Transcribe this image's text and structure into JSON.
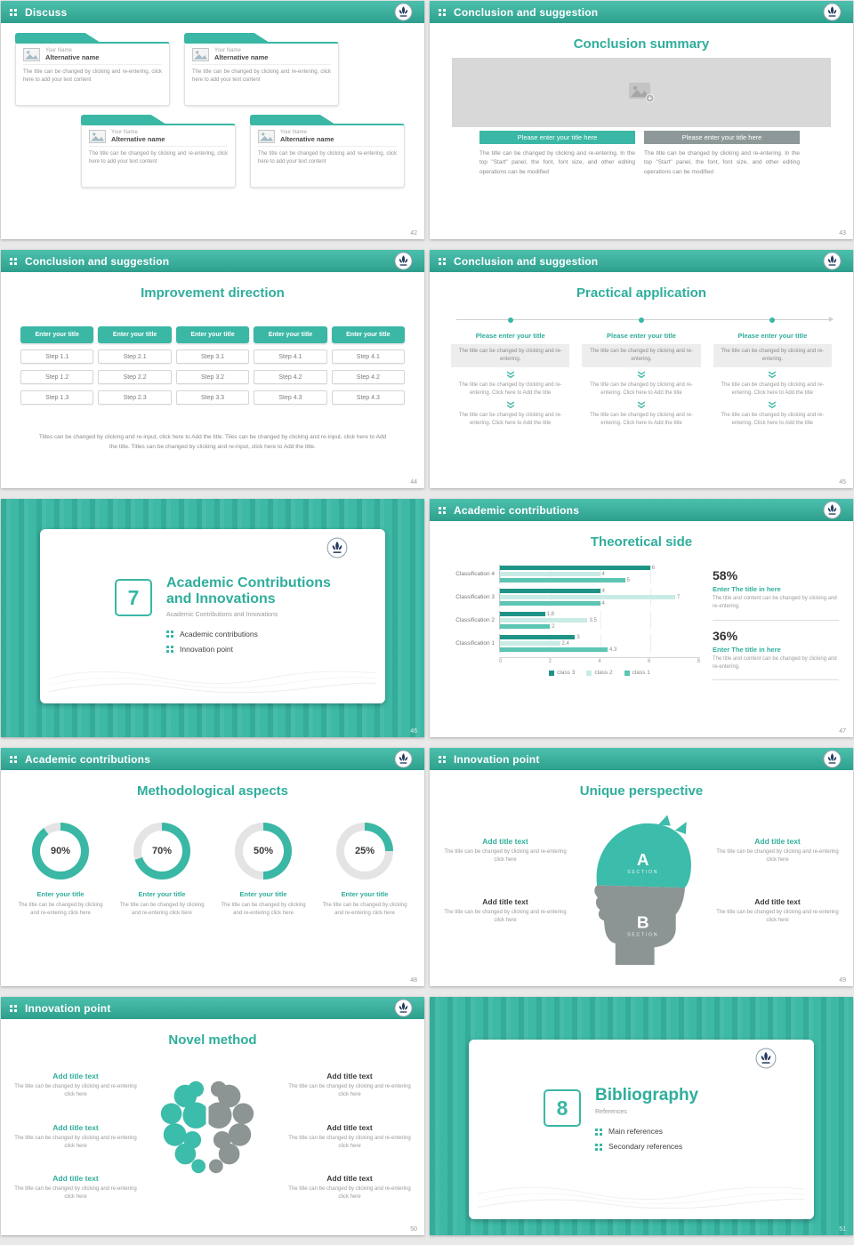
{
  "theme": {
    "primary": "#3ab7a5",
    "primary_dark": "#2e9f8d",
    "accent_text": "#2fae9c",
    "button_gray": "#8e9898",
    "body_gray": "#8a8a8a"
  },
  "common": {
    "your_name": "Your Name",
    "alternative_name": "Alternative name",
    "card_body": "The title can be changed by clicking and re-entering, click here to add your text content",
    "add_title_text": "Add title text",
    "enter_your_title": "Enter your title",
    "enter_the_title": "Enter The title in here",
    "please_enter_title_here": "Please enter your title here",
    "please_enter_your_title": "Please enter your title",
    "body_start_panel": "The title can be changed by clicking and re-entering. In the top \"Start\" panel, the font, font size, and other editing operations can be modified",
    "body_click_here": "The title can be changed by clicking and re-entering click here",
    "body_click_add": "The title can be changed by clicking and re-entering. Click here to Add the title",
    "body_short": "The title can be changed by clicking and re-entering.",
    "stat_body": "The title and content can be changed by clicking and re-entering.",
    "section_label": "SECTION"
  },
  "slides": [
    {
      "header": "Discuss",
      "page": "42"
    },
    {
      "header": "Conclusion and suggestion",
      "page": "43",
      "title": "Conclusion summary"
    },
    {
      "header": "Conclusion and suggestion",
      "page": "44",
      "title": "Improvement direction",
      "columns": [
        {
          "steps": [
            "Step 1.1",
            "Step 1.2",
            "Step 1.3"
          ]
        },
        {
          "steps": [
            "Step 2.1",
            "Step 2.2",
            "Step 2.3"
          ]
        },
        {
          "steps": [
            "Step 3.1",
            "Step 3.2",
            "Step 3.3"
          ]
        },
        {
          "steps": [
            "Step 4.1",
            "Step 4.2",
            "Step 4.3"
          ]
        },
        {
          "steps": [
            "Step 4.1",
            "Step 4.2",
            "Step 4.3"
          ]
        }
      ],
      "footer": "Titles can be changed by clicking and re-input, click here to Add the title. Tiles can be changed by clicking and re-input, click here to Add the title. Titles can be changed by clicking and re-input, click here to Add the title."
    },
    {
      "header": "Conclusion and suggestion",
      "page": "45",
      "title": "Practical application"
    },
    {
      "page": "46",
      "number": "7",
      "title_line1": "Academic Contributions",
      "title_line2": "and Innovations",
      "subtitle": "Academic Contributions and Innovations",
      "bullets": [
        "Academic contributions",
        "Innovation point"
      ]
    },
    {
      "header": "Academic contributions",
      "page": "47",
      "title": "Theoretical side",
      "stats": [
        {
          "percent": "58%"
        },
        {
          "percent": "36%"
        }
      ]
    },
    {
      "header": "Academic contributions",
      "page": "48",
      "title": "Methodological aspects",
      "donuts": [
        {
          "label": "90%"
        },
        {
          "label": "70%"
        },
        {
          "label": "50%"
        },
        {
          "label": "25%"
        }
      ]
    },
    {
      "header": "Innovation point",
      "page": "49",
      "title": "Unique perspective",
      "section_a": "A",
      "section_b": "B"
    },
    {
      "header": "Innovation point",
      "page": "50",
      "title": "Novel method"
    },
    {
      "page": "51",
      "number": "8",
      "title": "Bibliography",
      "subtitle": "References",
      "bullets": [
        "Main references",
        "Secondary references"
      ]
    }
  ],
  "chart_data": [
    {
      "type": "bar",
      "orientation": "horizontal",
      "title": "Theoretical side",
      "categories": [
        "Classification 4",
        "Classification 3",
        "Classification 2",
        "Classification 1"
      ],
      "series": [
        {
          "name": "class 3",
          "color": "#1f9486",
          "values": [
            6,
            4,
            1.8,
            3
          ]
        },
        {
          "name": "class 2",
          "color": "#c8ebe5",
          "values": [
            4,
            7,
            3.5,
            2.4
          ]
        },
        {
          "name": "class 1",
          "color": "#5cc5b4",
          "values": [
            5,
            4,
            2,
            4.3
          ]
        }
      ],
      "xlim": [
        0,
        8
      ],
      "ticks": [
        0,
        2,
        4,
        6,
        8
      ],
      "legend_position": "bottom"
    },
    {
      "type": "donut",
      "title": "Methodological aspects",
      "items": [
        {
          "label": "Enter your title",
          "percent": 90
        },
        {
          "label": "Enter your title",
          "percent": 70
        },
        {
          "label": "Enter your title",
          "percent": 50
        },
        {
          "label": "Enter your title",
          "percent": 25
        }
      ]
    }
  ]
}
